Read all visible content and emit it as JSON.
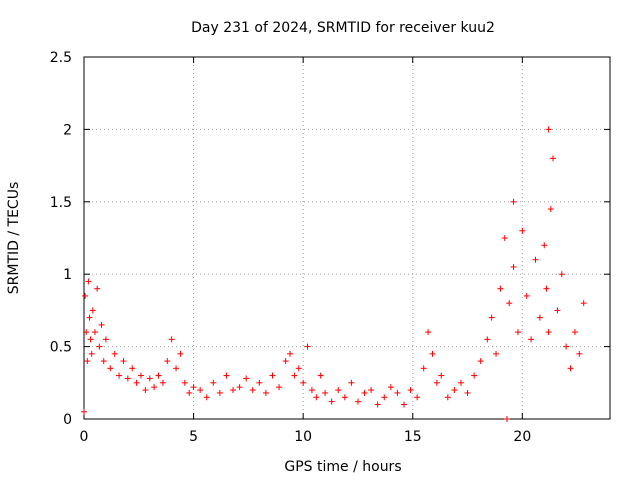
{
  "chart_data": {
    "type": "scatter",
    "title": "Day 231 of 2024, SRMTID for receiver kuu2",
    "xlabel": "GPS time / hours",
    "ylabel": "SRMTID / TECUs",
    "xlim": [
      0,
      24
    ],
    "ylim": [
      0,
      2.5
    ],
    "x_ticks": [
      0,
      5,
      10,
      15,
      20
    ],
    "x_tick_labels": [
      "0",
      "5",
      "10",
      "15",
      "20"
    ],
    "y_ticks": [
      0,
      0.5,
      1,
      1.5,
      2,
      2.5
    ],
    "y_tick_labels": [
      "0",
      "0.5",
      "1",
      "1.5",
      "2",
      "2.5"
    ],
    "grid": true,
    "marker": "+",
    "color": "#ff0000",
    "series": [
      {
        "name": "kuu2",
        "x": [
          0.0,
          0.05,
          0.1,
          0.15,
          0.2,
          0.25,
          0.3,
          0.35,
          0.4,
          0.5,
          0.6,
          0.7,
          0.8,
          0.9,
          1.0,
          1.2,
          1.4,
          1.6,
          1.8,
          2.0,
          2.2,
          2.4,
          2.6,
          2.8,
          3.0,
          3.2,
          3.4,
          3.6,
          3.8,
          4.0,
          4.2,
          4.4,
          4.6,
          4.8,
          5.0,
          5.3,
          5.6,
          5.9,
          6.2,
          6.5,
          6.8,
          7.1,
          7.4,
          7.7,
          8.0,
          8.3,
          8.6,
          8.9,
          9.2,
          9.4,
          9.6,
          9.8,
          10.0,
          10.2,
          10.4,
          10.6,
          10.8,
          11.0,
          11.3,
          11.6,
          11.9,
          12.2,
          12.5,
          12.8,
          13.1,
          13.4,
          13.7,
          14.0,
          14.3,
          14.6,
          14.9,
          15.2,
          15.5,
          15.7,
          15.9,
          16.1,
          16.3,
          16.6,
          16.9,
          17.2,
          17.5,
          17.8,
          18.1,
          18.4,
          18.6,
          18.8,
          19.0,
          19.2,
          19.4,
          19.6,
          19.8,
          20.0,
          20.2,
          20.4,
          20.6,
          20.8,
          21.0,
          21.1,
          21.2,
          21.3,
          21.4,
          21.6,
          21.8,
          22.0,
          22.2,
          22.4,
          22.6,
          22.8
        ],
        "y": [
          0.05,
          0.85,
          0.6,
          0.4,
          0.95,
          0.7,
          0.55,
          0.45,
          0.75,
          0.6,
          0.9,
          0.5,
          0.65,
          0.4,
          0.55,
          0.35,
          0.45,
          0.3,
          0.4,
          0.28,
          0.35,
          0.25,
          0.3,
          0.2,
          0.28,
          0.22,
          0.3,
          0.25,
          0.4,
          0.55,
          0.35,
          0.45,
          0.25,
          0.18,
          0.22,
          0.2,
          0.15,
          0.25,
          0.18,
          0.3,
          0.2,
          0.22,
          0.28,
          0.2,
          0.25,
          0.18,
          0.3,
          0.22,
          0.4,
          0.45,
          0.3,
          0.35,
          0.25,
          0.5,
          0.2,
          0.15,
          0.3,
          0.18,
          0.12,
          0.2,
          0.15,
          0.25,
          0.12,
          0.18,
          0.2,
          0.1,
          0.15,
          0.22,
          0.18,
          0.1,
          0.2,
          0.15,
          0.35,
          0.6,
          0.45,
          0.25,
          0.3,
          0.15,
          0.2,
          0.25,
          0.18,
          0.3,
          0.4,
          0.55,
          0.7,
          0.45,
          0.9,
          1.25,
          0.8,
          1.05,
          0.6,
          1.3,
          0.85,
          0.55,
          1.1,
          0.7,
          1.2,
          0.9,
          0.6,
          1.45,
          1.8,
          0.75,
          1.0,
          0.5,
          0.35,
          0.6,
          0.45,
          0.8
        ]
      }
    ],
    "outliers": [
      {
        "x": 19.3,
        "y": 0.0
      },
      {
        "x": 21.2,
        "y": 2.0
      },
      {
        "x": 19.6,
        "y": 1.5
      }
    ]
  }
}
